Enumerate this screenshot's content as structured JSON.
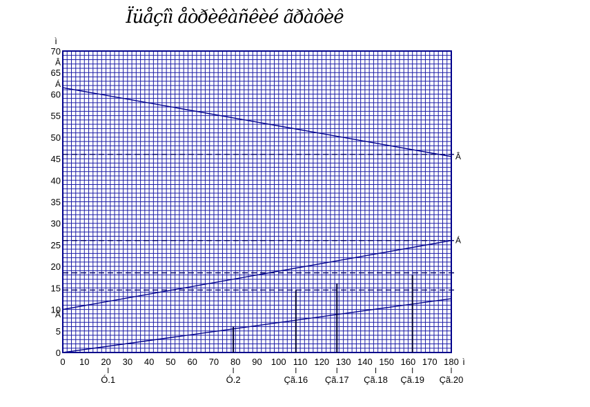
{
  "chart_data": {
    "type": "line",
    "title": "Ïüåçîì åòðèêàñêèé ãðàôèê",
    "y_unit_label": "ì",
    "x_unit_label": "ì",
    "xlim": [
      0,
      180
    ],
    "ylim": [
      0,
      70
    ],
    "x_ticks": [
      0,
      10,
      20,
      30,
      40,
      50,
      60,
      70,
      80,
      90,
      100,
      110,
      120,
      130,
      140,
      150,
      160,
      170,
      180
    ],
    "y_ticks": [
      0,
      5,
      10,
      15,
      20,
      25,
      30,
      35,
      40,
      45,
      50,
      55,
      60,
      65,
      70
    ],
    "grid": true,
    "colors": {
      "grid": "#1a1aa6",
      "line": "#00008b",
      "frame": "#00008b"
    },
    "series": [
      {
        "x": [
          0,
          180
        ],
        "y": [
          61.5,
          45.5
        ],
        "end_label": "Â"
      },
      {
        "x": [
          0,
          180
        ],
        "y": [
          10,
          26
        ],
        "end_label": "Á"
      },
      {
        "x": [
          0,
          180
        ],
        "y": [
          0,
          12.5
        ]
      }
    ],
    "left_axis_labels": [
      {
        "y": 67.5,
        "text": "Â"
      },
      {
        "y": 62.5,
        "text": "Á"
      },
      {
        "y": 9,
        "text": "Â"
      }
    ],
    "dashed_levels": [
      46,
      26,
      18.5,
      14.5
    ],
    "verticals": [
      {
        "x": 79,
        "top": 6,
        "label": "Ó.2"
      },
      {
        "x": 108,
        "top": 14.5,
        "label": "Çã.16"
      },
      {
        "x": 127,
        "top": 16,
        "label": "Çã.17"
      },
      {
        "x": 162,
        "top": 18,
        "label": "Çã.19"
      }
    ],
    "point_labels": [
      {
        "x": 21,
        "label": "Ó.1"
      },
      {
        "x": 79,
        "label": "Ó.2"
      },
      {
        "x": 108,
        "label": "Çã.16"
      },
      {
        "x": 127,
        "label": "Çã.17"
      },
      {
        "x": 145,
        "label": "Çã.18"
      },
      {
        "x": 162,
        "label": "Çã.19"
      },
      {
        "x": 180,
        "label": "Çã.20"
      }
    ]
  }
}
